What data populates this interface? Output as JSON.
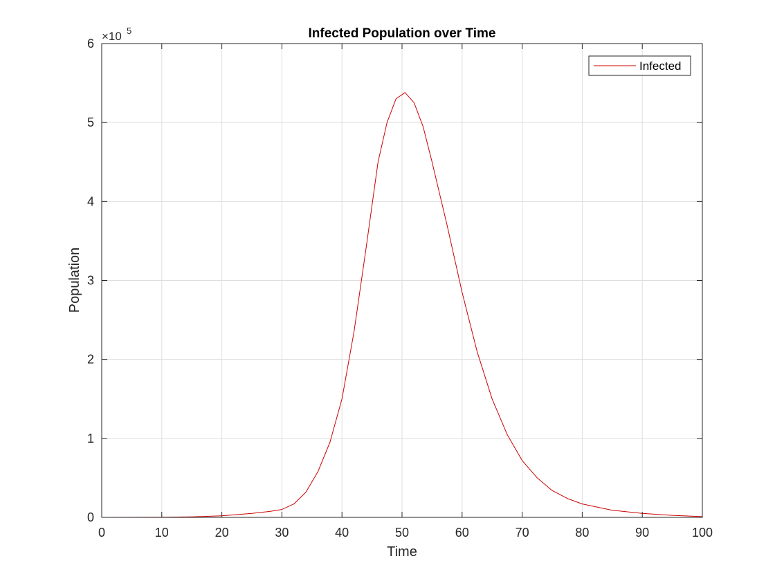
{
  "chart_data": {
    "type": "line",
    "title": "Infected Population over Time",
    "xlabel": "Time",
    "ylabel": "Population",
    "xlim": [
      0,
      100
    ],
    "ylim": [
      0,
      600000
    ],
    "x_ticks": [
      "0",
      "10",
      "20",
      "30",
      "40",
      "50",
      "60",
      "70",
      "80",
      "90",
      "100"
    ],
    "y_ticks": [
      "0",
      "1",
      "2",
      "3",
      "4",
      "5",
      "6"
    ],
    "y_exponent": {
      "base": "×10",
      "power": "5"
    },
    "grid": true,
    "legend_position": "top-right",
    "series": [
      {
        "name": "Infected",
        "color": "#cc0000",
        "x": [
          0,
          10,
          15,
          20,
          25,
          28,
          30,
          32,
          34,
          36,
          38,
          40,
          42,
          44,
          46,
          47.5,
          49,
          50.5,
          52,
          53.5,
          55,
          57.5,
          60,
          62.5,
          65,
          67.5,
          70,
          72.5,
          75,
          77.5,
          80,
          85,
          90,
          95,
          100
        ],
        "y": [
          0,
          200,
          700,
          2000,
          5000,
          7500,
          10000,
          17000,
          32000,
          58000,
          95000,
          150000,
          235000,
          340000,
          450000,
          500000,
          530000,
          538000,
          525000,
          495000,
          450000,
          370000,
          285000,
          210000,
          150000,
          105000,
          72000,
          50000,
          34000,
          24000,
          17000,
          9000,
          5000,
          2500,
          1000
        ]
      }
    ]
  }
}
